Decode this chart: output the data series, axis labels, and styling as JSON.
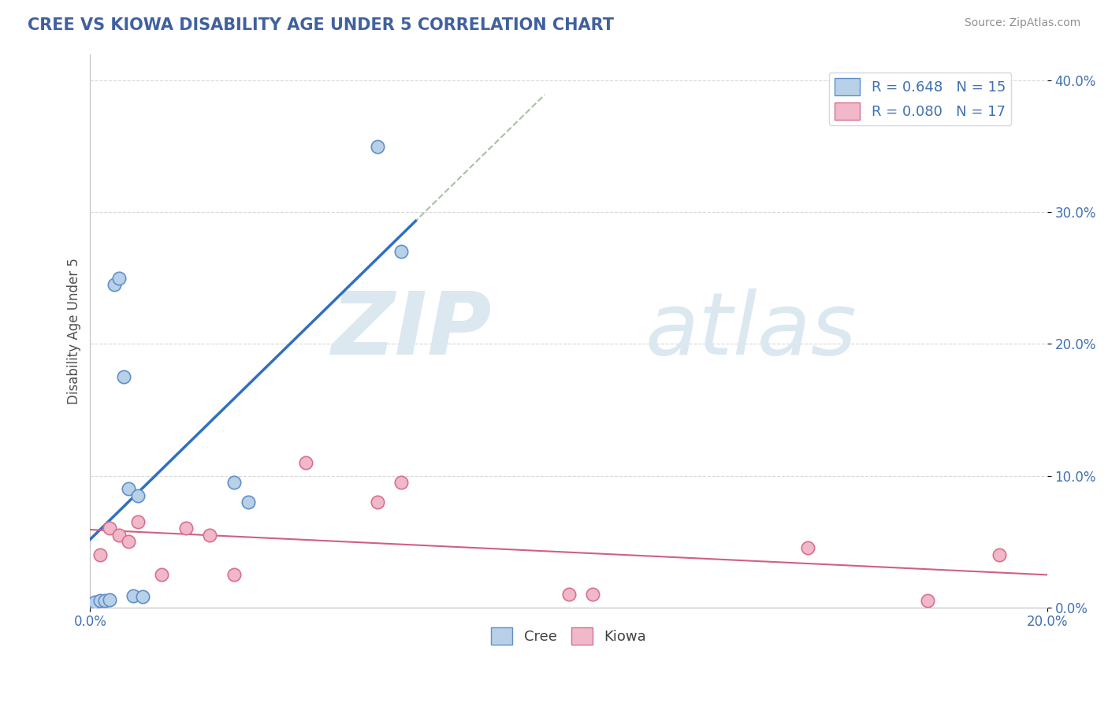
{
  "title": "CREE VS KIOWA DISABILITY AGE UNDER 5 CORRELATION CHART",
  "source": "Source: ZipAtlas.com",
  "ylabel_label": "Disability Age Under 5",
  "xmin": 0.0,
  "xmax": 0.2,
  "ymin": 0.0,
  "ymax": 0.42,
  "ytick_values": [
    0.0,
    0.1,
    0.2,
    0.3,
    0.4
  ],
  "cree_x": [
    0.001,
    0.002,
    0.003,
    0.004,
    0.005,
    0.006,
    0.007,
    0.008,
    0.009,
    0.01,
    0.011,
    0.03,
    0.033,
    0.06,
    0.065
  ],
  "cree_y": [
    0.004,
    0.005,
    0.005,
    0.006,
    0.245,
    0.25,
    0.175,
    0.09,
    0.009,
    0.085,
    0.008,
    0.095,
    0.08,
    0.35,
    0.27
  ],
  "kiowa_x": [
    0.002,
    0.004,
    0.006,
    0.008,
    0.01,
    0.015,
    0.02,
    0.025,
    0.03,
    0.045,
    0.06,
    0.065,
    0.1,
    0.105,
    0.15,
    0.175,
    0.19
  ],
  "kiowa_y": [
    0.04,
    0.06,
    0.055,
    0.05,
    0.065,
    0.025,
    0.06,
    0.055,
    0.025,
    0.11,
    0.08,
    0.095,
    0.01,
    0.01,
    0.045,
    0.005,
    0.04
  ],
  "cree_R": 0.648,
  "cree_N": 15,
  "kiowa_R": 0.08,
  "kiowa_N": 17,
  "cree_color": "#b8d0e8",
  "cree_edge_color": "#6090c8",
  "cree_line_color": "#3070c0",
  "kiowa_color": "#f0b8c8",
  "kiowa_edge_color": "#d87090",
  "kiowa_line_color": "#d06080",
  "trendline_dashed_color": "#a8c0a8",
  "background_color": "#ffffff",
  "grid_color": "#d8d8d8",
  "title_color": "#4060a0",
  "source_color": "#909090",
  "watermark_color": "#dce8f0",
  "legend_text_color": "#4070b0"
}
